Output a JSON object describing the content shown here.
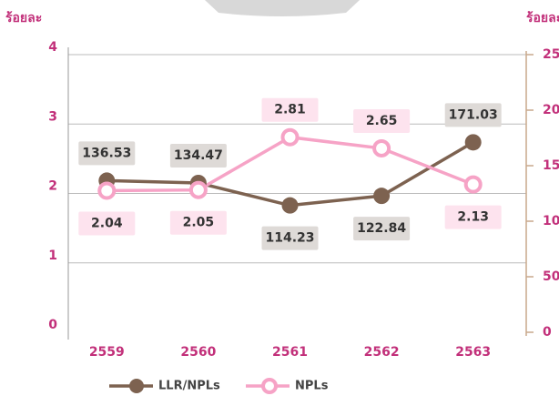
{
  "chart_data": {
    "type": "line",
    "y_label": "ร้อยละ",
    "y2_label": "ร้อยละ",
    "categories": [
      "2559",
      "2560",
      "2561",
      "2562",
      "2563"
    ],
    "series": [
      {
        "name": "LLR/NPLs",
        "color": "#7d6250",
        "axis": "y2",
        "values": [
          136.53,
          134.47,
          114.23,
          122.84,
          171.03
        ]
      },
      {
        "name": "NPLs",
        "color": "#f6a3c6",
        "values": [
          2.04,
          2.05,
          2.81,
          2.65,
          2.13
        ]
      }
    ],
    "ylim": [
      0,
      4
    ],
    "yticks": [
      0,
      1,
      2,
      3,
      4
    ],
    "y2lim": [
      0,
      250
    ],
    "y2ticks": [
      0,
      50,
      100,
      150,
      200,
      250
    ],
    "grid": true
  }
}
